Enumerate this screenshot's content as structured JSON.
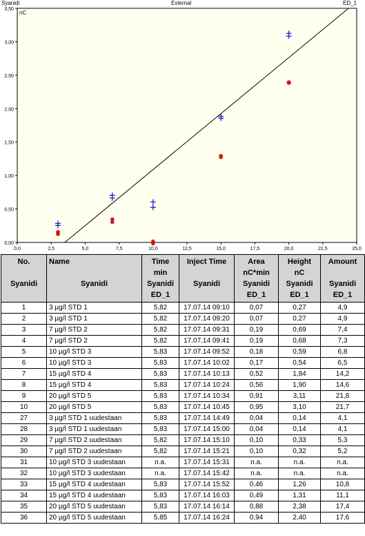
{
  "chart": {
    "header_left": "Syanidi",
    "header_center": "External",
    "header_right": "ED_1",
    "y_unit": "nC",
    "x_ticks": [
      "0,0",
      "2,5",
      "5,0",
      "7,5",
      "10,0",
      "12,5",
      "15,0",
      "17,5",
      "20,0",
      "22,5",
      "25,0"
    ],
    "y_ticks": [
      "0,00",
      "0,50",
      "1,00",
      "1,50",
      "2,00",
      "2,50",
      "3,00",
      "3,50"
    ],
    "colors": {
      "plot_bg": "#fffff0",
      "std": "#1f1fcc",
      "repeat": "#cc1111",
      "line": "#000000"
    }
  },
  "chart_data": {
    "type": "scatter",
    "xlim": [
      0,
      25
    ],
    "ylim": [
      0,
      3.5
    ],
    "series": [
      {
        "marker": "plus",
        "color": "#1f1fcc",
        "points": [
          [
            3,
            0.27
          ],
          [
            3,
            0.27
          ],
          [
            7,
            0.69
          ],
          [
            7,
            0.68
          ],
          [
            10,
            0.59
          ],
          [
            10,
            0.54
          ],
          [
            15,
            1.84
          ],
          [
            15,
            1.9
          ],
          [
            20,
            3.11
          ],
          [
            20,
            3.1
          ]
        ]
      },
      {
        "marker": "star",
        "color": "#cc1111",
        "points": [
          [
            3,
            0.14
          ],
          [
            3,
            0.14
          ],
          [
            7,
            0.33
          ],
          [
            7,
            0.32
          ],
          [
            10,
            0.0
          ],
          [
            10,
            0.0
          ],
          [
            15,
            1.26
          ],
          [
            15,
            1.31
          ],
          [
            20,
            2.38
          ],
          [
            20,
            2.4
          ]
        ]
      }
    ],
    "line": {
      "points": [
        [
          3.5,
          0.0
        ],
        [
          24.4,
          3.5
        ]
      ]
    }
  },
  "table": {
    "headers": {
      "no": [
        "No.",
        "",
        "Syanidi",
        ""
      ],
      "name": [
        "Name",
        "",
        "Syanidi",
        ""
      ],
      "time": [
        "Time",
        "min",
        "Syanidi",
        "ED_1"
      ],
      "inject": [
        "Inject Time",
        "",
        "Syanidi",
        ""
      ],
      "area": [
        "Area",
        "nC*min",
        "Syanidi",
        "ED_1"
      ],
      "height": [
        "Height",
        "nC",
        "Syanidi",
        "ED_1"
      ],
      "amount": [
        "Amount",
        "",
        "Syanidi",
        "ED_1"
      ]
    },
    "rows": [
      [
        "1",
        "3 µg/l STD 1",
        "5,82",
        "17.07.14 09:10",
        "0,07",
        "0,27",
        "4,9"
      ],
      [
        "2",
        "3 µg/l STD 1",
        "5,82",
        "17.07.14 09:20",
        "0,07",
        "0,27",
        "4,9"
      ],
      [
        "3",
        "7 µg/l STD 2",
        "5,82",
        "17.07.14 09:31",
        "0,19",
        "0,69",
        "7,4"
      ],
      [
        "4",
        "7 µg/l STD 2",
        "5,82",
        "17.07.14 09:41",
        "0,19",
        "0,68",
        "7,3"
      ],
      [
        "5",
        "10 µg/l STD 3",
        "5,83",
        "17.07.14 09:52",
        "0,18",
        "0,59",
        "6,8"
      ],
      [
        "6",
        "10 µg/l STD 3",
        "5,83",
        "17.07.14 10:02",
        "0,17",
        "0,54",
        "6,5"
      ],
      [
        "7",
        "15 µg/l STD 4",
        "5,83",
        "17.07.14 10:13",
        "0,52",
        "1,84",
        "14,2"
      ],
      [
        "8",
        "15 µg/l STD 4",
        "5,83",
        "17.07.14 10:24",
        "0,56",
        "1,90",
        "14,6"
      ],
      [
        "9",
        "20 µg/l STD 5",
        "5,83",
        "17.07.14 10:34",
        "0,91",
        "3,11",
        "21,8"
      ],
      [
        "10",
        "20 µg/l STD 5",
        "5,83",
        "17.07.14 10:45",
        "0,95",
        "3,10",
        "21,7"
      ],
      [
        "27",
        "3 µg/l STD 1 uudestaan",
        "5,83",
        "17.07.14 14:49",
        "0,04",
        "0,14",
        "4,1"
      ],
      [
        "28",
        "3 µg/l STD 1 uudestaan",
        "5,83",
        "17.07.14 15:00",
        "0,04",
        "0,14",
        "4,1"
      ],
      [
        "29",
        "7 µg/l STD 2 uudestaan",
        "5,82",
        "17.07.14 15:10",
        "0,10",
        "0,33",
        "5,3"
      ],
      [
        "30",
        "7 µg/l STD 2 uudestaan",
        "5,82",
        "17.07.14 15:21",
        "0,10",
        "0,32",
        "5,2"
      ],
      [
        "31",
        "10 µg/l STD 3 uudestaan",
        "n.a.",
        "17.07.14 15:31",
        "n.a.",
        "n.a.",
        "n.a."
      ],
      [
        "32",
        "10 µg/l STD 3 uudestaan",
        "n.a.",
        "17.07.14 15:42",
        "n.a.",
        "n.a.",
        "n.a."
      ],
      [
        "33",
        "15 µg/l STD 4 uudestaan",
        "5,83",
        "17.07.14 15:52",
        "0,46",
        "1,26",
        "10,8"
      ],
      [
        "34",
        "15 µg/l STD 4 uudestaan",
        "5,83",
        "17.07.14 16:03",
        "0,49",
        "1,31",
        "11,1"
      ],
      [
        "35",
        "20 µg/l STD 5 uudestaan",
        "5,83",
        "17.07.14 16:14",
        "0,88",
        "2,38",
        "17,4"
      ],
      [
        "36",
        "20 µg/l STD 5 uudestaan",
        "5,85",
        "17.07.14 16:24",
        "0,94",
        "2,40",
        "17,6"
      ]
    ]
  }
}
